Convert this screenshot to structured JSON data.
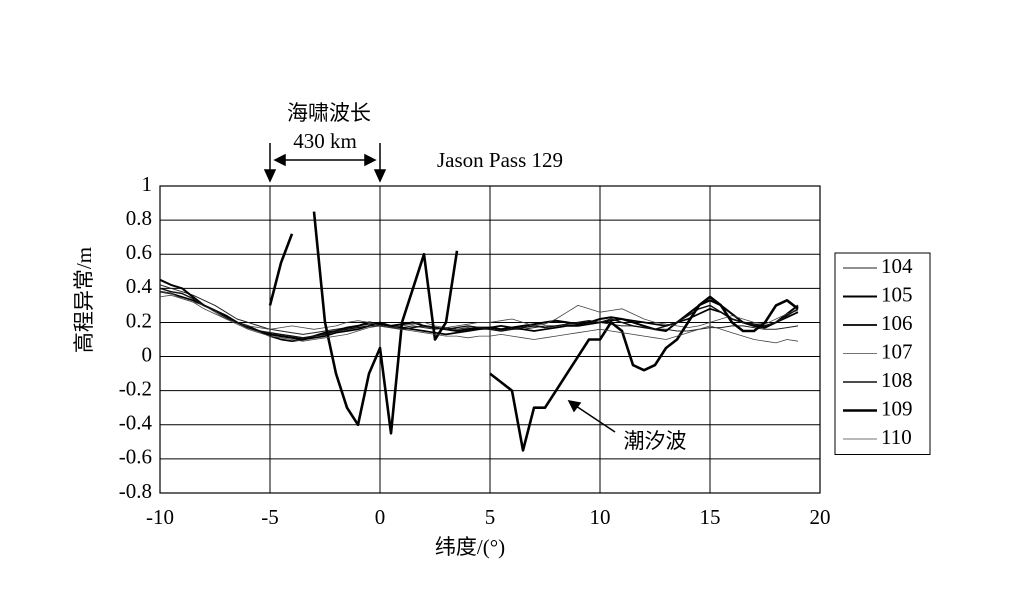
{
  "chart_data": {
    "type": "line",
    "title": "Jason Pass 129",
    "x_label": "纬度/(°)",
    "y_label": "高程异常/m",
    "annotations": [
      "海啸波长",
      "430 km",
      "潮汐波"
    ],
    "x": [
      -10,
      -9.5,
      -9,
      -8.5,
      -8,
      -7.5,
      -7,
      -6.5,
      -6,
      -5.5,
      -5,
      -4.5,
      -4,
      -3.5,
      -3,
      -2.5,
      -2,
      -1.5,
      -1,
      -0.5,
      0,
      0.5,
      1,
      1.5,
      2,
      2.5,
      3,
      3.5,
      4,
      4.5,
      5,
      5.5,
      6,
      6.5,
      7,
      7.5,
      8,
      8.5,
      9,
      9.5,
      10,
      10.5,
      11,
      11.5,
      12,
      12.5,
      13,
      13.5,
      14,
      14.5,
      15,
      15.5,
      16,
      16.5,
      17,
      17.5,
      18,
      18.5,
      19,
      19.5
    ],
    "series": [
      {
        "name": "104",
        "color": "#222222",
        "line_width": 1,
        "values": [
          0.42,
          0.4,
          0.38,
          0.36,
          0.33,
          0.3,
          0.26,
          0.22,
          0.2,
          0.18,
          0.16,
          0.15,
          0.14,
          0.13,
          0.14,
          0.15,
          0.16,
          0.17,
          0.18,
          0.19,
          0.19,
          0.18,
          0.17,
          0.18,
          0.17,
          0.16,
          0.17,
          0.16,
          0.17,
          0.16,
          0.16,
          0.15,
          0.16,
          0.16,
          0.17,
          0.18,
          0.18,
          0.19,
          0.19,
          0.2,
          0.2,
          0.19,
          0.18,
          0.18,
          0.17,
          0.16,
          0.16,
          0.15,
          0.15,
          0.16,
          0.17,
          0.17,
          0.18,
          0.18,
          0.17,
          0.16,
          0.16,
          0.17,
          0.18,
          null
        ]
      },
      {
        "name": "105",
        "color": "#000000",
        "line_width": 2,
        "values": [
          0.45,
          0.42,
          0.4,
          0.35,
          0.3,
          0.27,
          0.24,
          0.2,
          0.17,
          0.15,
          0.13,
          0.12,
          0.11,
          0.1,
          0.12,
          0.14,
          0.15,
          0.17,
          0.18,
          0.2,
          0.19,
          0.18,
          0.19,
          0.2,
          0.18,
          0.17,
          0.16,
          0.15,
          0.16,
          0.17,
          0.17,
          0.16,
          0.17,
          0.18,
          0.19,
          0.2,
          0.21,
          0.2,
          0.19,
          0.2,
          0.22,
          0.23,
          0.22,
          0.2,
          0.18,
          0.16,
          0.15,
          0.2,
          0.25,
          0.3,
          0.33,
          0.3,
          0.25,
          0.2,
          0.18,
          0.17,
          0.2,
          0.25,
          0.3,
          null
        ]
      },
      {
        "name": "106",
        "color": "#000000",
        "line_width": 1.7,
        "values": [
          0.38,
          0.37,
          0.35,
          0.33,
          0.3,
          0.27,
          0.23,
          0.2,
          0.18,
          0.15,
          0.12,
          0.1,
          0.09,
          0.1,
          0.11,
          0.12,
          0.14,
          0.15,
          0.16,
          0.18,
          0.2,
          0.18,
          0.17,
          0.16,
          0.15,
          0.14,
          0.13,
          0.14,
          0.15,
          0.16,
          0.17,
          0.18,
          0.17,
          0.16,
          0.15,
          0.16,
          0.17,
          0.18,
          0.18,
          0.19,
          0.2,
          0.21,
          0.22,
          0.21,
          0.2,
          0.19,
          0.18,
          0.2,
          0.22,
          0.25,
          0.28,
          0.26,
          0.22,
          0.2,
          0.19,
          0.18,
          0.2,
          0.23,
          0.26,
          null
        ]
      },
      {
        "name": "107",
        "color": "#444444",
        "line_width": 0.8,
        "values": [
          0.35,
          0.36,
          0.34,
          0.32,
          0.3,
          0.26,
          0.22,
          0.2,
          0.18,
          0.17,
          0.16,
          0.17,
          0.18,
          0.17,
          0.16,
          0.17,
          0.18,
          0.2,
          0.21,
          0.2,
          0.18,
          0.17,
          0.18,
          0.19,
          0.2,
          0.18,
          0.17,
          0.18,
          0.19,
          0.2,
          0.2,
          0.21,
          0.22,
          0.2,
          0.18,
          0.19,
          0.22,
          0.26,
          0.3,
          0.28,
          0.26,
          0.27,
          0.28,
          0.25,
          0.22,
          0.2,
          0.19,
          0.18,
          0.17,
          0.18,
          0.2,
          0.22,
          0.24,
          0.22,
          0.2,
          0.19,
          0.22,
          0.25,
          0.27,
          null
        ]
      },
      {
        "name": "108",
        "color": "#111111",
        "line_width": 1.4,
        "values": [
          0.4,
          0.38,
          0.37,
          0.34,
          0.3,
          0.27,
          0.23,
          0.2,
          0.17,
          0.15,
          0.14,
          0.13,
          0.12,
          0.11,
          0.12,
          0.13,
          0.15,
          0.16,
          0.17,
          0.18,
          0.18,
          0.17,
          0.16,
          0.17,
          0.18,
          0.17,
          0.16,
          0.17,
          0.18,
          0.17,
          0.16,
          0.15,
          0.16,
          0.17,
          0.18,
          0.17,
          0.18,
          0.19,
          0.2,
          0.21,
          0.2,
          0.22,
          0.2,
          0.18,
          0.17,
          0.16,
          0.18,
          0.2,
          0.24,
          0.28,
          0.3,
          0.26,
          0.22,
          0.2,
          0.19,
          0.18,
          0.2,
          0.24,
          0.28,
          null
        ]
      },
      {
        "name": "109",
        "color": "#000000",
        "line_width": 2.6,
        "values": [
          null,
          null,
          null,
          null,
          null,
          null,
          null,
          null,
          null,
          null,
          0.3,
          0.55,
          0.72,
          null,
          0.85,
          0.2,
          -0.1,
          -0.3,
          -0.4,
          -0.1,
          0.05,
          -0.45,
          0.2,
          0.4,
          0.6,
          0.1,
          0.2,
          0.62,
          null,
          null,
          -0.1,
          -0.15,
          -0.2,
          -0.55,
          -0.3,
          -0.3,
          -0.2,
          -0.1,
          0,
          0.1,
          0.1,
          0.2,
          0.15,
          -0.05,
          -0.08,
          -0.05,
          0.05,
          0.1,
          0.2,
          0.3,
          0.35,
          0.3,
          0.2,
          0.15,
          0.15,
          0.2,
          0.3,
          0.33,
          0.28,
          null
        ]
      },
      {
        "name": "110",
        "color": "#444444",
        "line_width": 0.8,
        "values": [
          0.38,
          0.37,
          0.34,
          0.32,
          0.28,
          0.25,
          0.22,
          0.19,
          0.16,
          0.14,
          0.12,
          0.11,
          0.1,
          0.09,
          0.1,
          0.11,
          0.12,
          0.13,
          0.15,
          0.17,
          0.18,
          0.17,
          0.16,
          0.15,
          0.14,
          0.13,
          0.12,
          0.12,
          0.11,
          0.12,
          0.12,
          0.13,
          0.12,
          0.11,
          0.1,
          0.11,
          0.12,
          0.13,
          0.14,
          0.15,
          0.16,
          0.15,
          0.14,
          0.13,
          0.12,
          0.11,
          0.1,
          0.12,
          0.14,
          0.16,
          0.18,
          0.16,
          0.14,
          0.12,
          0.1,
          0.09,
          0.08,
          0.1,
          0.09,
          null
        ]
      }
    ],
    "xlim": [
      -10,
      20
    ],
    "xticks": [
      -10,
      -5,
      0,
      5,
      10,
      15,
      20
    ],
    "ylim": [
      -0.8,
      1
    ],
    "yticks": [
      -0.8,
      -0.6,
      -0.4,
      -0.2,
      0,
      0.2,
      0.4,
      0.6,
      0.8,
      1
    ],
    "grid": true,
    "legend": "right"
  }
}
